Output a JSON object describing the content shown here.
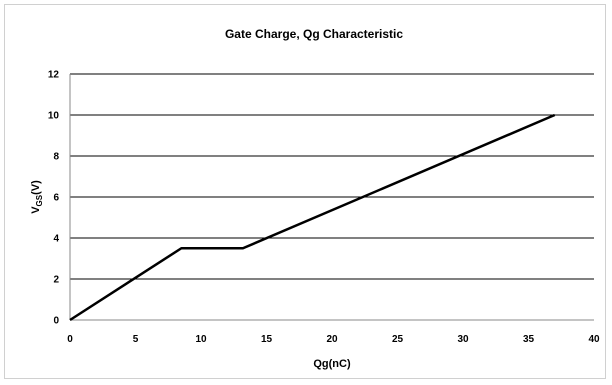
{
  "chart_data": {
    "type": "line",
    "title": "Gate Charge, Qg Characteristic",
    "xlabel": "Qg(nC)",
    "ylabel": {
      "main": "V",
      "sub": "GS",
      "suffix": "(V)"
    },
    "xlim": [
      0,
      40
    ],
    "ylim": [
      0,
      12
    ],
    "x_ticks": [
      0,
      5,
      10,
      15,
      20,
      25,
      30,
      35,
      40
    ],
    "y_ticks": [
      0,
      2,
      4,
      6,
      8,
      10,
      12
    ],
    "grid": {
      "horizontal": true,
      "vertical": false
    },
    "series": [
      {
        "x": [
          0,
          8.5,
          13.2,
          37
        ],
        "y": [
          0,
          3.5,
          3.5,
          10
        ]
      }
    ],
    "colors": {
      "line": "#000000",
      "grid": "#000000",
      "axis": "#888888"
    }
  }
}
